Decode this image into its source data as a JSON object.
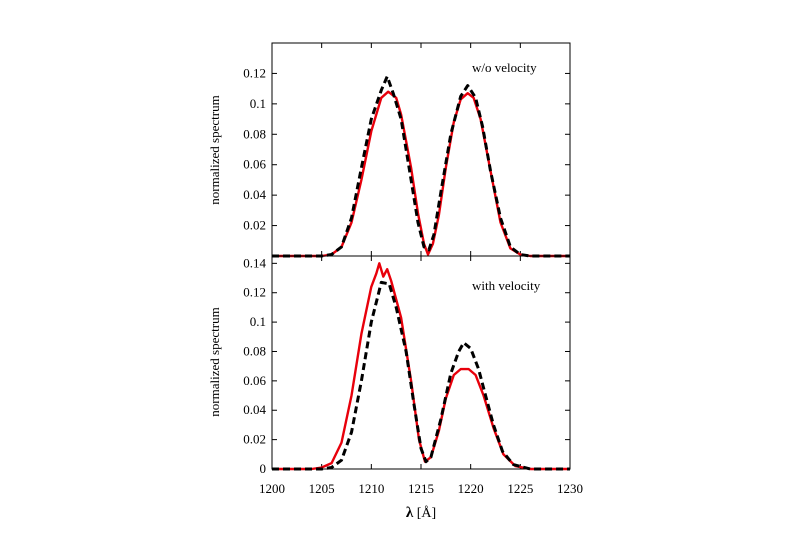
{
  "chart_data": [
    {
      "type": "line",
      "annotation": "w/o velocity",
      "ylabel": "normalized spectrum",
      "xlim": [
        1200,
        1230
      ],
      "ylim": [
        0,
        0.14
      ],
      "yticks": [
        0.02,
        0.04,
        0.06,
        0.08,
        0.1,
        0.12
      ],
      "ytick_labels": [
        "0.02",
        "0.04",
        "0.06",
        "0.08",
        "0.1",
        "0.12"
      ],
      "grid": false,
      "series": [
        {
          "color": "#e8000b",
          "style": "solid",
          "points": [
            [
              1200,
              0
            ],
            [
              1205,
              0
            ],
            [
              1206,
              0.001
            ],
            [
              1207,
              0.006
            ],
            [
              1208,
              0.022
            ],
            [
              1209,
              0.05
            ],
            [
              1210,
              0.082
            ],
            [
              1211,
              0.104
            ],
            [
              1211.7,
              0.108
            ],
            [
              1212.5,
              0.104
            ],
            [
              1213,
              0.093
            ],
            [
              1214,
              0.058
            ],
            [
              1214.7,
              0.028
            ],
            [
              1215.3,
              0.008
            ],
            [
              1215.7,
              0.001
            ],
            [
              1216.2,
              0.008
            ],
            [
              1216.8,
              0.027
            ],
            [
              1217.5,
              0.058
            ],
            [
              1218.3,
              0.088
            ],
            [
              1219,
              0.103
            ],
            [
              1219.7,
              0.107
            ],
            [
              1220.3,
              0.104
            ],
            [
              1221,
              0.09
            ],
            [
              1222,
              0.056
            ],
            [
              1223,
              0.022
            ],
            [
              1224,
              0.005
            ],
            [
              1225,
              0.001
            ],
            [
              1226,
              0
            ],
            [
              1230,
              0
            ]
          ]
        },
        {
          "color": "#000000",
          "style": "dashed",
          "points": [
            [
              1200,
              0
            ],
            [
              1205,
              0
            ],
            [
              1206,
              0.001
            ],
            [
              1207,
              0.006
            ],
            [
              1208,
              0.025
            ],
            [
              1209,
              0.058
            ],
            [
              1210,
              0.09
            ],
            [
              1211,
              0.109
            ],
            [
              1211.6,
              0.118
            ],
            [
              1212.2,
              0.107
            ],
            [
              1213,
              0.09
            ],
            [
              1214,
              0.05
            ],
            [
              1214.7,
              0.022
            ],
            [
              1215.3,
              0.006
            ],
            [
              1215.8,
              0.004
            ],
            [
              1216.3,
              0.014
            ],
            [
              1217,
              0.042
            ],
            [
              1218,
              0.08
            ],
            [
              1219,
              0.105
            ],
            [
              1219.7,
              0.112
            ],
            [
              1220.5,
              0.104
            ],
            [
              1221.2,
              0.085
            ],
            [
              1222,
              0.056
            ],
            [
              1223,
              0.025
            ],
            [
              1224,
              0.006
            ],
            [
              1225,
              0.001
            ],
            [
              1226,
              0
            ],
            [
              1230,
              0
            ]
          ]
        }
      ]
    },
    {
      "type": "line",
      "annotation": "with velocity",
      "ylabel": "normalized spectrum",
      "xlabel_symbol": "λ",
      "xlabel_unit": " [Å]",
      "xlim": [
        1200,
        1230
      ],
      "ylim": [
        0,
        0.145
      ],
      "xticks": [
        1200,
        1205,
        1210,
        1215,
        1220,
        1225,
        1230
      ],
      "xtick_labels": [
        "1200",
        "1205",
        "1210",
        "1215",
        "1220",
        "1225",
        "1230"
      ],
      "yticks": [
        0,
        0.02,
        0.04,
        0.06,
        0.08,
        0.1,
        0.12,
        0.14
      ],
      "ytick_labels": [
        "0",
        "0.02",
        "0.04",
        "0.06",
        "0.08",
        "0.1",
        "0.12",
        "0.14"
      ],
      "grid": false,
      "series": [
        {
          "color": "#e8000b",
          "style": "solid",
          "points": [
            [
              1200,
              0
            ],
            [
              1204,
              0
            ],
            [
              1205,
              0.001
            ],
            [
              1206,
              0.004
            ],
            [
              1207,
              0.018
            ],
            [
              1208,
              0.05
            ],
            [
              1209,
              0.092
            ],
            [
              1210,
              0.124
            ],
            [
              1210.5,
              0.133
            ],
            [
              1210.8,
              0.14
            ],
            [
              1211.2,
              0.131
            ],
            [
              1211.6,
              0.136
            ],
            [
              1212,
              0.128
            ],
            [
              1213,
              0.103
            ],
            [
              1214,
              0.06
            ],
            [
              1214.8,
              0.02
            ],
            [
              1215.4,
              0.005
            ],
            [
              1216,
              0.008
            ],
            [
              1216.8,
              0.026
            ],
            [
              1217.5,
              0.048
            ],
            [
              1218.3,
              0.064
            ],
            [
              1219,
              0.068
            ],
            [
              1219.8,
              0.068
            ],
            [
              1220.5,
              0.064
            ],
            [
              1221.3,
              0.05
            ],
            [
              1222.3,
              0.028
            ],
            [
              1223.3,
              0.01
            ],
            [
              1224.5,
              0.002
            ],
            [
              1226,
              0
            ],
            [
              1230,
              0
            ]
          ]
        },
        {
          "color": "#000000",
          "style": "dashed",
          "points": [
            [
              1200,
              0
            ],
            [
              1205,
              0
            ],
            [
              1206,
              0.001
            ],
            [
              1207,
              0.006
            ],
            [
              1208,
              0.025
            ],
            [
              1209,
              0.06
            ],
            [
              1210,
              0.1
            ],
            [
              1211,
              0.127
            ],
            [
              1211.8,
              0.126
            ],
            [
              1212.5,
              0.11
            ],
            [
              1213.5,
              0.08
            ],
            [
              1214.3,
              0.044
            ],
            [
              1215,
              0.014
            ],
            [
              1215.5,
              0.005
            ],
            [
              1216,
              0.008
            ],
            [
              1217,
              0.034
            ],
            [
              1218,
              0.065
            ],
            [
              1218.8,
              0.08
            ],
            [
              1219.3,
              0.086
            ],
            [
              1220,
              0.082
            ],
            [
              1220.8,
              0.068
            ],
            [
              1221.5,
              0.05
            ],
            [
              1222.3,
              0.03
            ],
            [
              1223.2,
              0.012
            ],
            [
              1224.3,
              0.003
            ],
            [
              1226,
              0
            ],
            [
              1230,
              0
            ]
          ]
        }
      ]
    }
  ]
}
